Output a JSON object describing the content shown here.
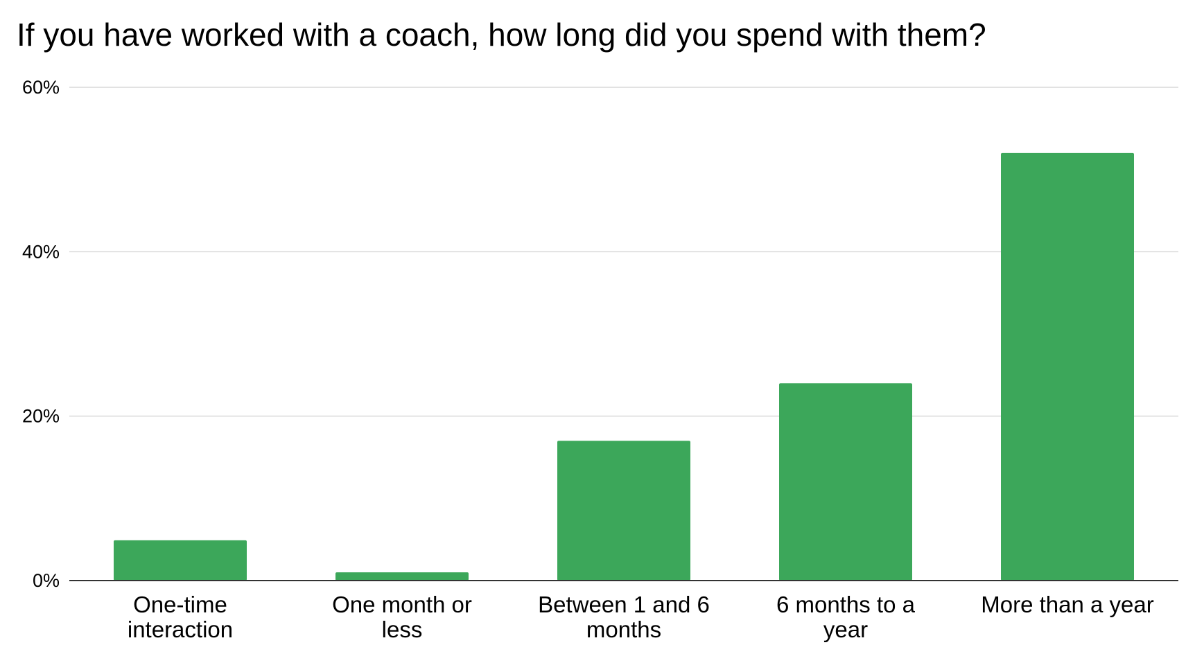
{
  "chart_data": {
    "type": "bar",
    "title": "If you have worked with a coach, how long did you spend with them?",
    "categories": [
      [
        "One-time",
        "interaction"
      ],
      [
        "One month or",
        "less"
      ],
      [
        "Between 1 and 6",
        "months"
      ],
      [
        "6 months to a",
        "year"
      ],
      [
        "More than a year"
      ]
    ],
    "values": [
      4.9,
      1.0,
      17,
      24,
      52
    ],
    "value_unit": "%",
    "ylim": [
      0,
      60
    ],
    "yticks": [
      "0%",
      "20%",
      "40%",
      "60%"
    ],
    "ytick_values": [
      0,
      20,
      40,
      60
    ],
    "xlabel": "",
    "ylabel": "",
    "grid": true,
    "legend": "none",
    "bar_color": "#3ca75a",
    "grid_color": "#d9d9d9",
    "axis_color": "#333333"
  }
}
